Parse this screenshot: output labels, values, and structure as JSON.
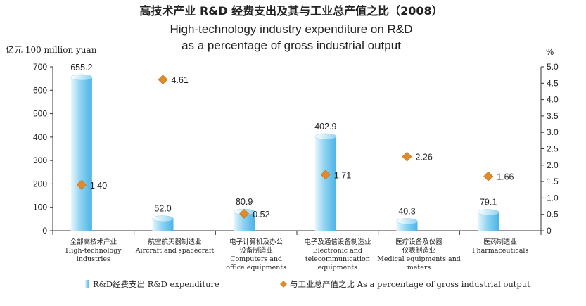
{
  "chart_data": {
    "type": "bar",
    "title_cn": "高技术产业 R&D 经费支出及其与工业总产值之比（2008）",
    "title_en_line1": "High-technology industry expenditure on R&D",
    "title_en_line2": "as a percentage of gross industrial output",
    "y_left_label": "亿元 100 million yuan",
    "y_right_label": "%",
    "y_left_range": [
      0,
      700
    ],
    "y_left_ticks": [
      "0",
      "100",
      "200",
      "300",
      "400",
      "500",
      "600",
      "700"
    ],
    "y_right_range": [
      0,
      5.0
    ],
    "y_right_ticks": [
      "0",
      "0.5",
      "1.0",
      "1.5",
      "2.0",
      "2.5",
      "3.0",
      "3.5",
      "4.0",
      "4.5",
      "5.0"
    ],
    "categories": [
      {
        "cn": "全部高技术产业",
        "en": [
          "High-technology",
          "industries"
        ]
      },
      {
        "cn": "航空航天器制造业",
        "en": [
          "Aircraft and spacecraft"
        ]
      },
      {
        "cn": "电子计算机及办公",
        "cn2": "设备制造业",
        "en": [
          "Computers and",
          "office equipments"
        ]
      },
      {
        "cn": "电子及通信设备制造业",
        "en": [
          "Electronic and",
          "telecommunication",
          "equipments"
        ]
      },
      {
        "cn": "医疗设备及仪器",
        "cn2": "仪表制造业",
        "en": [
          "Medical equipments and",
          "meters"
        ]
      },
      {
        "cn": "医药制造业",
        "en": [
          "Pharmaceuticals"
        ]
      }
    ],
    "series": [
      {
        "name": "R&D经费支出 R&D expenditure",
        "axis": "left",
        "values": [
          655.2,
          52.0,
          80.9,
          402.9,
          40.3,
          79.1
        ],
        "labels": [
          "655.2",
          "52.0",
          "80.9",
          "402.9",
          "40.3",
          "79.1"
        ]
      },
      {
        "name": "与工业总产值之比 As a percentage of gross industrial output",
        "axis": "right",
        "values": [
          1.4,
          4.61,
          0.52,
          1.71,
          2.26,
          1.66
        ],
        "labels": [
          "1.40",
          "4.61",
          "0.52",
          "1.71",
          "2.26",
          "1.66"
        ]
      }
    ],
    "colors": {
      "bar_light": "#e8f6fd",
      "bar_mid": "#8fd3f2",
      "bar_dark": "#4ab3e6",
      "marker": "#e08a2e",
      "axis": "#333333"
    },
    "grid": false,
    "legend_position": "bottom"
  }
}
